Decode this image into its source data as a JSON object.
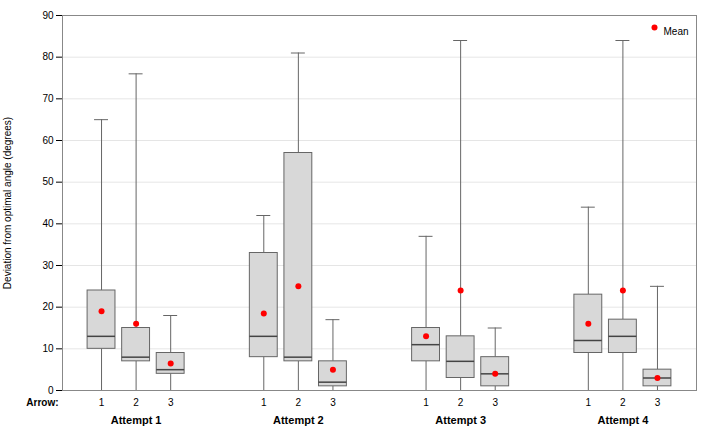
{
  "chart_data": {
    "type": "box",
    "ylabel": "Deviation from optimal angle (degrees)",
    "xlabel": "Arrow:",
    "categories": [
      "1",
      "2",
      "3",
      "1",
      "2",
      "3",
      "1",
      "2",
      "3",
      "1",
      "2",
      "3"
    ],
    "groups": [
      "Attempt 1",
      "Attempt 2",
      "Attempt 3",
      "Attempt 4"
    ],
    "color": "#d8d8d8",
    "boxes": [
      {
        "whislo": 0,
        "q1": 10,
        "med": 13,
        "q3": 24,
        "whishi": 65
      },
      {
        "whislo": 0,
        "q1": 7,
        "med": 8,
        "q3": 15,
        "whishi": 76
      },
      {
        "whislo": 0,
        "q1": 4,
        "med": 5,
        "q3": 9,
        "whishi": 18
      },
      {
        "whislo": 0,
        "q1": 8,
        "med": 13,
        "q3": 33,
        "whishi": 42
      },
      {
        "whislo": 0,
        "q1": 7,
        "med": 8,
        "q3": 57,
        "whishi": 81
      },
      {
        "whislo": 0,
        "q1": 1,
        "med": 2,
        "q3": 7,
        "whishi": 17
      },
      {
        "whislo": 0,
        "q1": 7,
        "med": 11,
        "q3": 15,
        "whishi": 37
      },
      {
        "whislo": 0,
        "q1": 3,
        "med": 7,
        "q3": 13,
        "whishi": 84
      },
      {
        "whislo": 0,
        "q1": 1,
        "med": 4,
        "q3": 8,
        "whishi": 15
      },
      {
        "whislo": 0,
        "q1": 9,
        "med": 12,
        "q3": 23,
        "whishi": 44
      },
      {
        "whislo": 0,
        "q1": 9,
        "med": 13,
        "q3": 17,
        "whishi": 84
      },
      {
        "whislo": 0,
        "q1": 1,
        "med": 3,
        "q3": 5,
        "whishi": 25
      }
    ],
    "series": [
      {
        "name": "Mean",
        "color": "#ff0000",
        "marker": "o",
        "values": [
          19,
          16,
          6.5,
          18.5,
          25,
          5,
          13,
          24,
          4,
          16,
          24,
          3
        ]
      }
    ],
    "ylim": [
      0,
      90
    ],
    "yticks": [
      0,
      10,
      20,
      30,
      40,
      50,
      60,
      70,
      80,
      90
    ],
    "grid": true,
    "legend": "upper right"
  }
}
